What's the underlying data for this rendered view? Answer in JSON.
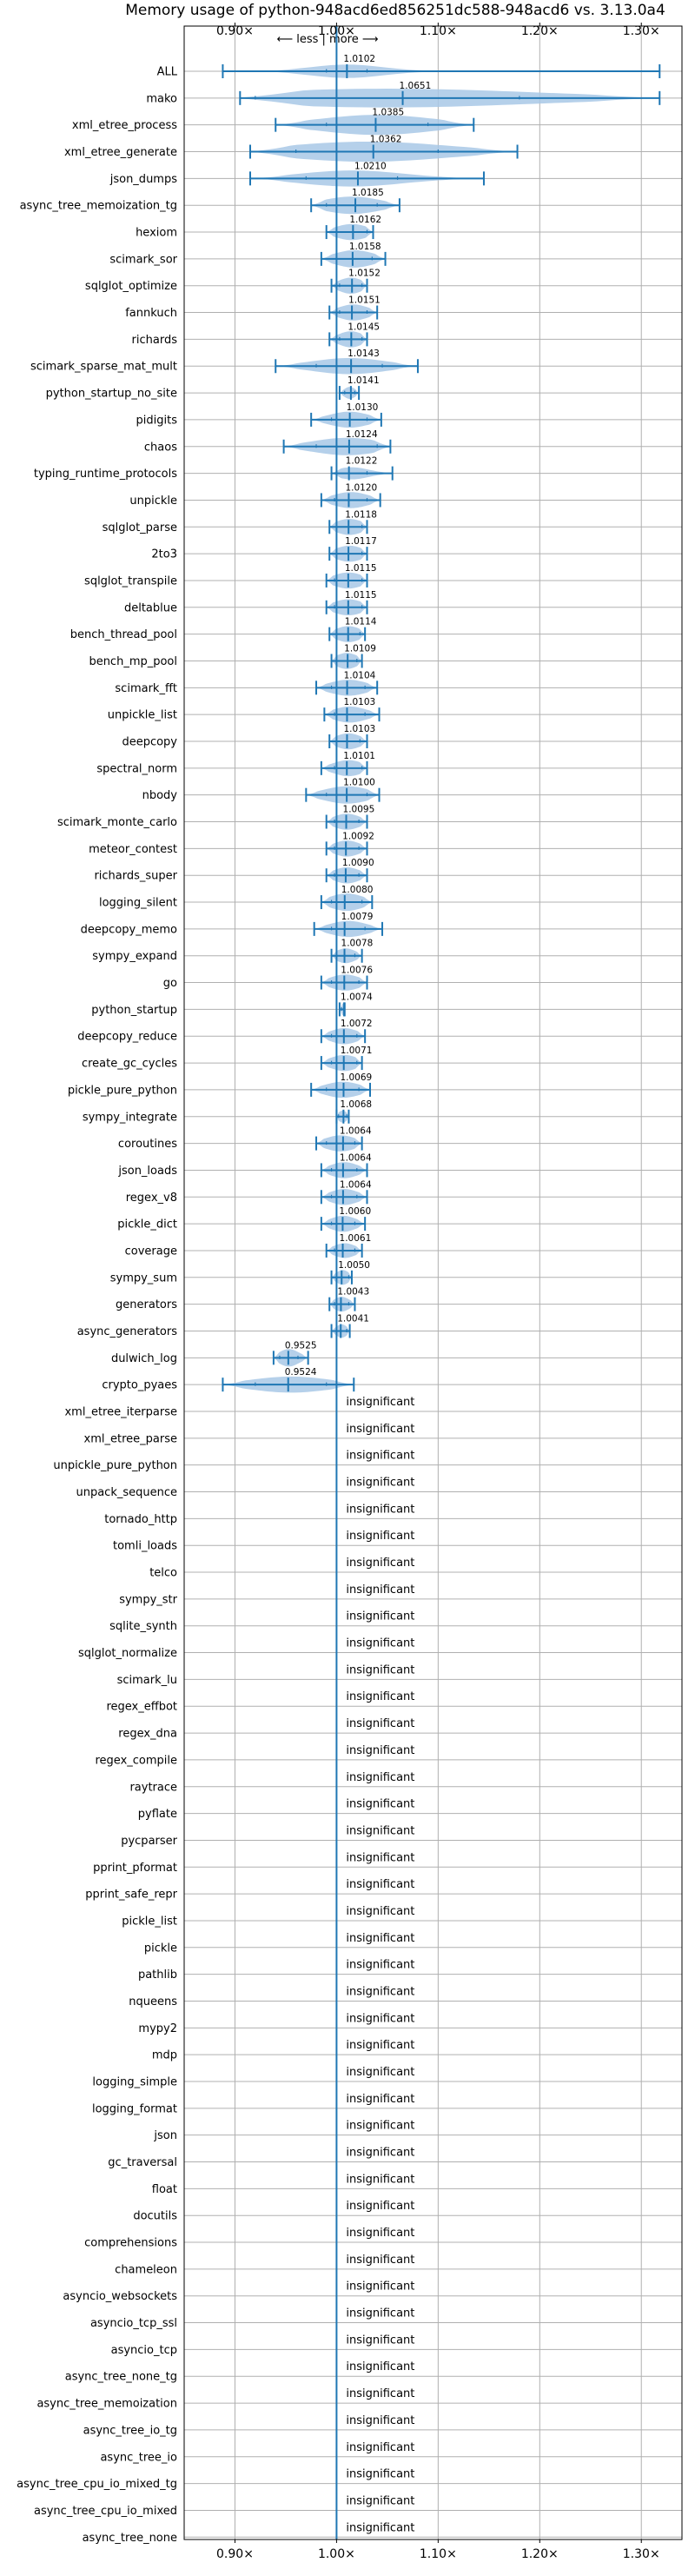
{
  "chart_data": {
    "type": "violin",
    "title": "Memory usage of python-948acd6ed856251dc588-948acd6 vs. 3.13.0a4",
    "direction_label": "⟵ less | more ⟶",
    "xlim": [
      0.85,
      1.34
    ],
    "x_tick_labels": [
      "0.90×",
      "1.00×",
      "1.10×",
      "1.20×",
      "1.30×"
    ],
    "x_tick_values": [
      0.9,
      1.0,
      1.1,
      1.2,
      1.3
    ],
    "reference_value": 1.0,
    "grid": true,
    "insignificant_label": "insignificant",
    "rows": [
      {
        "name": "ALL",
        "value": 1.0102,
        "label": "1.0102",
        "min": 0.888,
        "max": 1.318,
        "q1": 0.99,
        "q3": 1.03,
        "width": 0.5
      },
      {
        "name": "mako",
        "value": 1.0651,
        "label": "1.0651",
        "min": 0.905,
        "max": 1.318,
        "q1": 0.92,
        "q3": 1.18,
        "width": 0.7
      },
      {
        "name": "xml_etree_process",
        "value": 1.0385,
        "label": "1.0385",
        "min": 0.94,
        "max": 1.135,
        "q1": 0.99,
        "q3": 1.09,
        "width": 0.75
      },
      {
        "name": "xml_etree_generate",
        "value": 1.0362,
        "label": "1.0362",
        "min": 0.915,
        "max": 1.178,
        "q1": 0.96,
        "q3": 1.1,
        "width": 0.75
      },
      {
        "name": "json_dumps",
        "value": 1.021,
        "label": "1.0210",
        "min": 0.915,
        "max": 1.145,
        "q1": 0.97,
        "q3": 1.06,
        "width": 0.6
      },
      {
        "name": "async_tree_memoization_tg",
        "value": 1.0185,
        "label": "1.0185",
        "min": 0.975,
        "max": 1.062,
        "q1": 0.99,
        "q3": 1.04,
        "width": 0.65
      },
      {
        "name": "hexiom",
        "value": 1.0162,
        "label": "1.0162",
        "min": 0.99,
        "max": 1.036,
        "q1": 1.0,
        "q3": 1.03,
        "width": 0.6
      },
      {
        "name": "scimark_sor",
        "value": 1.0158,
        "label": "1.0158",
        "min": 0.985,
        "max": 1.048,
        "q1": 1.0,
        "q3": 1.035,
        "width": 0.65
      },
      {
        "name": "sqlglot_optimize",
        "value": 1.0152,
        "label": "1.0152",
        "min": 0.995,
        "max": 1.03,
        "q1": 1.003,
        "q3": 1.025,
        "width": 0.6
      },
      {
        "name": "fannkuch",
        "value": 1.0151,
        "label": "1.0151",
        "min": 0.993,
        "max": 1.04,
        "q1": 1.003,
        "q3": 1.03,
        "width": 0.6
      },
      {
        "name": "richards",
        "value": 1.0145,
        "label": "1.0145",
        "min": 0.993,
        "max": 1.03,
        "q1": 1.003,
        "q3": 1.025,
        "width": 0.6
      },
      {
        "name": "scimark_sparse_mat_mult",
        "value": 1.0143,
        "label": "1.0143",
        "min": 0.94,
        "max": 1.08,
        "q1": 0.98,
        "q3": 1.045,
        "width": 0.6
      },
      {
        "name": "python_startup_no_site",
        "value": 1.0141,
        "label": "1.0141",
        "min": 1.003,
        "max": 1.022,
        "q1": 1.008,
        "q3": 1.018,
        "width": 0.45
      },
      {
        "name": "pidigits",
        "value": 1.013,
        "label": "1.0130",
        "min": 0.975,
        "max": 1.044,
        "q1": 0.995,
        "q3": 1.03,
        "width": 0.6
      },
      {
        "name": "chaos",
        "value": 1.0124,
        "label": "1.0124",
        "min": 0.948,
        "max": 1.053,
        "q1": 0.98,
        "q3": 1.04,
        "width": 0.65
      },
      {
        "name": "typing_runtime_protocols",
        "value": 1.0122,
        "label": "1.0122",
        "min": 0.995,
        "max": 1.055,
        "q1": 1.0,
        "q3": 1.03,
        "width": 0.45
      },
      {
        "name": "unpickle",
        "value": 1.012,
        "label": "1.0120",
        "min": 0.985,
        "max": 1.043,
        "q1": 0.998,
        "q3": 1.03,
        "width": 0.6
      },
      {
        "name": "sqlglot_parse",
        "value": 1.0118,
        "label": "1.0118",
        "min": 0.993,
        "max": 1.03,
        "q1": 1.0,
        "q3": 1.025,
        "width": 0.6
      },
      {
        "name": "2to3",
        "value": 1.0117,
        "label": "1.0117",
        "min": 0.993,
        "max": 1.03,
        "q1": 1.0,
        "q3": 1.025,
        "width": 0.6
      },
      {
        "name": "sqlglot_transpile",
        "value": 1.0115,
        "label": "1.0115",
        "min": 0.99,
        "max": 1.03,
        "q1": 0.998,
        "q3": 1.025,
        "width": 0.6
      },
      {
        "name": "deltablue",
        "value": 1.0115,
        "label": "1.0115",
        "min": 0.99,
        "max": 1.03,
        "q1": 0.998,
        "q3": 1.025,
        "width": 0.6
      },
      {
        "name": "bench_thread_pool",
        "value": 1.0114,
        "label": "1.0114",
        "min": 0.993,
        "max": 1.028,
        "q1": 1.0,
        "q3": 1.023,
        "width": 0.6
      },
      {
        "name": "bench_mp_pool",
        "value": 1.0109,
        "label": "1.0109",
        "min": 0.995,
        "max": 1.025,
        "q1": 1.0,
        "q3": 1.02,
        "width": 0.6
      },
      {
        "name": "scimark_fft",
        "value": 1.0104,
        "label": "1.0104",
        "min": 0.98,
        "max": 1.04,
        "q1": 0.995,
        "q3": 1.028,
        "width": 0.6
      },
      {
        "name": "unpickle_list",
        "value": 1.0103,
        "label": "1.0103",
        "min": 0.988,
        "max": 1.042,
        "q1": 0.998,
        "q3": 1.028,
        "width": 0.6
      },
      {
        "name": "deepcopy",
        "value": 1.0103,
        "label": "1.0103",
        "min": 0.993,
        "max": 1.03,
        "q1": 1.0,
        "q3": 1.023,
        "width": 0.6
      },
      {
        "name": "spectral_norm",
        "value": 1.0101,
        "label": "1.0101",
        "min": 0.985,
        "max": 1.03,
        "q1": 0.998,
        "q3": 1.025,
        "width": 0.6
      },
      {
        "name": "nbody",
        "value": 1.01,
        "label": "1.0100",
        "min": 0.97,
        "max": 1.042,
        "q1": 0.99,
        "q3": 1.03,
        "width": 0.65
      },
      {
        "name": "scimark_monte_carlo",
        "value": 1.0095,
        "label": "1.0095",
        "min": 0.99,
        "max": 1.03,
        "q1": 0.998,
        "q3": 1.022,
        "width": 0.6
      },
      {
        "name": "meteor_contest",
        "value": 1.0092,
        "label": "1.0092",
        "min": 0.99,
        "max": 1.03,
        "q1": 0.998,
        "q3": 1.022,
        "width": 0.6
      },
      {
        "name": "richards_super",
        "value": 1.009,
        "label": "1.0090",
        "min": 0.99,
        "max": 1.03,
        "q1": 0.998,
        "q3": 1.022,
        "width": 0.6
      },
      {
        "name": "logging_silent",
        "value": 1.008,
        "label": "1.0080",
        "min": 0.985,
        "max": 1.035,
        "q1": 0.995,
        "q3": 1.025,
        "width": 0.65
      },
      {
        "name": "deepcopy_memo",
        "value": 1.0079,
        "label": "1.0079",
        "min": 0.978,
        "max": 1.045,
        "q1": 0.995,
        "q3": 1.028,
        "width": 0.6
      },
      {
        "name": "sympy_expand",
        "value": 1.0078,
        "label": "1.0078",
        "min": 0.995,
        "max": 1.025,
        "q1": 1.0,
        "q3": 1.018,
        "width": 0.55
      },
      {
        "name": "go",
        "value": 1.0076,
        "label": "1.0076",
        "min": 0.985,
        "max": 1.03,
        "q1": 0.995,
        "q3": 1.022,
        "width": 0.6
      },
      {
        "name": "python_startup",
        "value": 1.0074,
        "label": "1.0074",
        "min": 1.003,
        "max": 1.008,
        "q1": 1.005,
        "q3": 1.007,
        "width": 0.45
      },
      {
        "name": "deepcopy_reduce",
        "value": 1.0072,
        "label": "1.0072",
        "min": 0.985,
        "max": 1.028,
        "q1": 0.995,
        "q3": 1.02,
        "width": 0.6
      },
      {
        "name": "create_gc_cycles",
        "value": 1.0071,
        "label": "1.0071",
        "min": 0.985,
        "max": 1.025,
        "q1": 0.995,
        "q3": 1.02,
        "width": 0.6
      },
      {
        "name": "pickle_pure_python",
        "value": 1.0069,
        "label": "1.0069",
        "min": 0.975,
        "max": 1.033,
        "q1": 0.99,
        "q3": 1.022,
        "width": 0.6
      },
      {
        "name": "sympy_integrate",
        "value": 1.0068,
        "label": "1.0068",
        "min": 1.0,
        "max": 1.012,
        "q1": 1.002,
        "q3": 1.01,
        "width": 0.45
      },
      {
        "name": "coroutines",
        "value": 1.0064,
        "label": "1.0064",
        "min": 0.98,
        "max": 1.025,
        "q1": 0.99,
        "q3": 1.018,
        "width": 0.6
      },
      {
        "name": "json_loads",
        "value": 1.0064,
        "label": "1.0064",
        "min": 0.985,
        "max": 1.03,
        "q1": 0.995,
        "q3": 1.02,
        "width": 0.6
      },
      {
        "name": "regex_v8",
        "value": 1.0064,
        "label": "1.0064",
        "min": 0.985,
        "max": 1.03,
        "q1": 0.995,
        "q3": 1.02,
        "width": 0.6
      },
      {
        "name": "pickle_dict",
        "value": 1.006,
        "label": "1.0060",
        "min": 0.985,
        "max": 1.028,
        "q1": 0.995,
        "q3": 1.018,
        "width": 0.6
      },
      {
        "name": "coverage",
        "value": 1.0061,
        "label": "1.0061",
        "min": 0.99,
        "max": 1.025,
        "q1": 0.998,
        "q3": 1.018,
        "width": 0.55
      },
      {
        "name": "sympy_sum",
        "value": 1.005,
        "label": "1.0050",
        "min": 0.995,
        "max": 1.015,
        "q1": 1.0,
        "q3": 1.012,
        "width": 0.55
      },
      {
        "name": "generators",
        "value": 1.0043,
        "label": "1.0043",
        "min": 0.993,
        "max": 1.018,
        "q1": 0.998,
        "q3": 1.012,
        "width": 0.55
      },
      {
        "name": "async_generators",
        "value": 1.0041,
        "label": "1.0041",
        "min": 0.995,
        "max": 1.013,
        "q1": 1.0,
        "q3": 1.01,
        "width": 0.5
      },
      {
        "name": "dulwich_log",
        "value": 0.9525,
        "label": "0.9525",
        "min": 0.938,
        "max": 0.972,
        "q1": 0.944,
        "q3": 0.962,
        "width": 0.65
      },
      {
        "name": "crypto_pyaes",
        "value": 0.9524,
        "label": "0.9524",
        "min": 0.888,
        "max": 1.017,
        "q1": 0.92,
        "q3": 0.99,
        "width": 0.6
      },
      {
        "name": "xml_etree_iterparse",
        "insignificant": true
      },
      {
        "name": "xml_etree_parse",
        "insignificant": true
      },
      {
        "name": "unpickle_pure_python",
        "insignificant": true
      },
      {
        "name": "unpack_sequence",
        "insignificant": true
      },
      {
        "name": "tornado_http",
        "insignificant": true
      },
      {
        "name": "tomli_loads",
        "insignificant": true
      },
      {
        "name": "telco",
        "insignificant": true
      },
      {
        "name": "sympy_str",
        "insignificant": true
      },
      {
        "name": "sqlite_synth",
        "insignificant": true
      },
      {
        "name": "sqlglot_normalize",
        "insignificant": true
      },
      {
        "name": "scimark_lu",
        "insignificant": true
      },
      {
        "name": "regex_effbot",
        "insignificant": true
      },
      {
        "name": "regex_dna",
        "insignificant": true
      },
      {
        "name": "regex_compile",
        "insignificant": true
      },
      {
        "name": "raytrace",
        "insignificant": true
      },
      {
        "name": "pyflate",
        "insignificant": true
      },
      {
        "name": "pycparser",
        "insignificant": true
      },
      {
        "name": "pprint_pformat",
        "insignificant": true
      },
      {
        "name": "pprint_safe_repr",
        "insignificant": true
      },
      {
        "name": "pickle_list",
        "insignificant": true
      },
      {
        "name": "pickle",
        "insignificant": true
      },
      {
        "name": "pathlib",
        "insignificant": true
      },
      {
        "name": "nqueens",
        "insignificant": true
      },
      {
        "name": "mypy2",
        "insignificant": true
      },
      {
        "name": "mdp",
        "insignificant": true
      },
      {
        "name": "logging_simple",
        "insignificant": true
      },
      {
        "name": "logging_format",
        "insignificant": true
      },
      {
        "name": "json",
        "insignificant": true
      },
      {
        "name": "gc_traversal",
        "insignificant": true
      },
      {
        "name": "float",
        "insignificant": true
      },
      {
        "name": "docutils",
        "insignificant": true
      },
      {
        "name": "comprehensions",
        "insignificant": true
      },
      {
        "name": "chameleon",
        "insignificant": true
      },
      {
        "name": "asyncio_websockets",
        "insignificant": true
      },
      {
        "name": "asyncio_tcp_ssl",
        "insignificant": true
      },
      {
        "name": "asyncio_tcp",
        "insignificant": true
      },
      {
        "name": "async_tree_none_tg",
        "insignificant": true
      },
      {
        "name": "async_tree_memoization",
        "insignificant": true
      },
      {
        "name": "async_tree_io_tg",
        "insignificant": true
      },
      {
        "name": "async_tree_io",
        "insignificant": true
      },
      {
        "name": "async_tree_cpu_io_mixed_tg",
        "insignificant": true
      },
      {
        "name": "async_tree_cpu_io_mixed",
        "insignificant": true
      },
      {
        "name": "async_tree_none",
        "insignificant": true
      }
    ],
    "colors": {
      "violin": "#a8c8e6",
      "line": "#1f77b4",
      "grid": "#b0b0b0",
      "axis": "#000000"
    }
  }
}
